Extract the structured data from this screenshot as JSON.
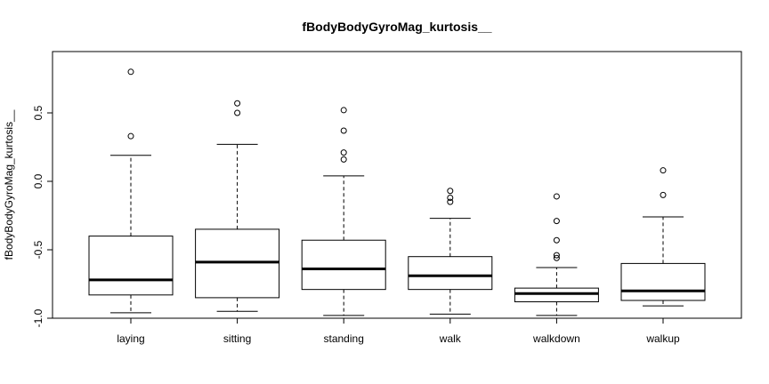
{
  "chart_data": {
    "type": "box",
    "title": "fBodyBodyGyroMag_kurtosis__",
    "xlabel": "",
    "ylabel": "fBodyBodyGyroMag_kurtosis__",
    "ylim": [
      -1.05,
      0.87
    ],
    "yticks": [
      -1.0,
      -0.5,
      0.0,
      0.5
    ],
    "ytick_labels": [
      "-1.0",
      "-0.5",
      "0.0",
      "0.5"
    ],
    "grid": false,
    "legend": "none",
    "categories": [
      "laying",
      "sitting",
      "standing",
      "walk",
      "walkdown",
      "walkup"
    ],
    "boxes": [
      {
        "category": "laying",
        "lower_whisker": -0.96,
        "q1": -0.83,
        "median": -0.72,
        "q3": -0.4,
        "upper_whisker": 0.19,
        "outliers": [
          0.33,
          0.8
        ]
      },
      {
        "category": "sitting",
        "lower_whisker": -0.95,
        "q1": -0.85,
        "median": -0.59,
        "q3": -0.35,
        "upper_whisker": 0.27,
        "outliers": [
          0.5,
          0.57
        ]
      },
      {
        "category": "standing",
        "lower_whisker": -0.98,
        "q1": -0.79,
        "median": -0.64,
        "q3": -0.43,
        "upper_whisker": 0.04,
        "outliers": [
          0.16,
          0.21,
          0.37,
          0.52
        ]
      },
      {
        "category": "walk",
        "lower_whisker": -0.97,
        "q1": -0.79,
        "median": -0.69,
        "q3": -0.55,
        "upper_whisker": -0.27,
        "outliers": [
          -0.15,
          -0.12,
          -0.07
        ]
      },
      {
        "category": "walkdown",
        "lower_whisker": -0.98,
        "q1": -0.88,
        "median": -0.82,
        "q3": -0.78,
        "upper_whisker": -0.63,
        "outliers": [
          -0.56,
          -0.54,
          -0.43,
          -0.29,
          -0.11
        ]
      },
      {
        "category": "walkup",
        "lower_whisker": -0.91,
        "q1": -0.87,
        "median": -0.8,
        "q3": -0.6,
        "upper_whisker": -0.26,
        "outliers": [
          -0.1,
          0.08
        ]
      }
    ]
  }
}
